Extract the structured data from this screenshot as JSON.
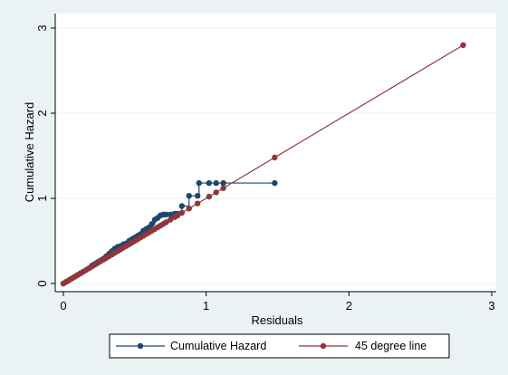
{
  "chart_data": {
    "type": "line",
    "title": "",
    "xlabel": "Residuals",
    "ylabel": "Cumulative Hazard",
    "xlim": [
      0,
      3
    ],
    "ylim": [
      0,
      3
    ],
    "x_ticks": [
      "0",
      "1",
      "2",
      "3"
    ],
    "y_ticks": [
      "0",
      "1",
      "2",
      "3"
    ],
    "grid": "horizontal",
    "legend_position": "bottom",
    "colors": {
      "background": "#eaf2f3",
      "plot_area": "#ffffff",
      "gridline": "#eaf2f3",
      "axis": "#000000"
    },
    "series": [
      {
        "name": "Cumulative Hazard",
        "color": "#1a476f",
        "marker": "circle",
        "step": true,
        "points": [
          [
            0.0,
            0.0
          ],
          [
            0.02,
            0.02
          ],
          [
            0.04,
            0.04
          ],
          [
            0.06,
            0.06
          ],
          [
            0.08,
            0.08
          ],
          [
            0.1,
            0.1
          ],
          [
            0.12,
            0.12
          ],
          [
            0.14,
            0.14
          ],
          [
            0.16,
            0.16
          ],
          [
            0.18,
            0.18
          ],
          [
            0.2,
            0.21
          ],
          [
            0.22,
            0.23
          ],
          [
            0.24,
            0.25
          ],
          [
            0.26,
            0.27
          ],
          [
            0.28,
            0.29
          ],
          [
            0.3,
            0.32
          ],
          [
            0.32,
            0.35
          ],
          [
            0.34,
            0.38
          ],
          [
            0.36,
            0.41
          ],
          [
            0.38,
            0.43
          ],
          [
            0.4,
            0.44
          ],
          [
            0.42,
            0.46
          ],
          [
            0.44,
            0.47
          ],
          [
            0.46,
            0.5
          ],
          [
            0.48,
            0.52
          ],
          [
            0.5,
            0.54
          ],
          [
            0.52,
            0.56
          ],
          [
            0.54,
            0.58
          ],
          [
            0.56,
            0.62
          ],
          [
            0.58,
            0.64
          ],
          [
            0.6,
            0.66
          ],
          [
            0.62,
            0.7
          ],
          [
            0.64,
            0.75
          ],
          [
            0.66,
            0.77
          ],
          [
            0.68,
            0.8
          ],
          [
            0.7,
            0.81
          ],
          [
            0.72,
            0.81
          ],
          [
            0.75,
            0.81
          ],
          [
            0.78,
            0.82
          ],
          [
            0.8,
            0.82
          ],
          [
            0.83,
            0.91
          ],
          [
            0.88,
            1.03
          ],
          [
            0.94,
            1.03
          ],
          [
            0.95,
            1.18
          ],
          [
            1.02,
            1.18
          ],
          [
            1.07,
            1.18
          ],
          [
            1.12,
            1.18
          ],
          [
            1.48,
            1.18
          ]
        ]
      },
      {
        "name": "45 degree line",
        "color": "#90353b",
        "marker": "circle",
        "step": false,
        "points": [
          [
            0.0,
            0.0
          ],
          [
            0.02,
            0.02
          ],
          [
            0.04,
            0.04
          ],
          [
            0.06,
            0.06
          ],
          [
            0.08,
            0.08
          ],
          [
            0.1,
            0.1
          ],
          [
            0.12,
            0.12
          ],
          [
            0.14,
            0.14
          ],
          [
            0.16,
            0.16
          ],
          [
            0.18,
            0.18
          ],
          [
            0.2,
            0.2
          ],
          [
            0.22,
            0.22
          ],
          [
            0.24,
            0.24
          ],
          [
            0.26,
            0.26
          ],
          [
            0.28,
            0.28
          ],
          [
            0.3,
            0.3
          ],
          [
            0.32,
            0.32
          ],
          [
            0.34,
            0.34
          ],
          [
            0.36,
            0.36
          ],
          [
            0.38,
            0.38
          ],
          [
            0.4,
            0.4
          ],
          [
            0.42,
            0.42
          ],
          [
            0.44,
            0.44
          ],
          [
            0.46,
            0.46
          ],
          [
            0.48,
            0.48
          ],
          [
            0.5,
            0.5
          ],
          [
            0.52,
            0.52
          ],
          [
            0.54,
            0.54
          ],
          [
            0.56,
            0.56
          ],
          [
            0.58,
            0.58
          ],
          [
            0.6,
            0.6
          ],
          [
            0.62,
            0.62
          ],
          [
            0.64,
            0.64
          ],
          [
            0.66,
            0.66
          ],
          [
            0.68,
            0.68
          ],
          [
            0.7,
            0.7
          ],
          [
            0.72,
            0.72
          ],
          [
            0.75,
            0.75
          ],
          [
            0.78,
            0.78
          ],
          [
            0.8,
            0.8
          ],
          [
            0.83,
            0.83
          ],
          [
            0.88,
            0.88
          ],
          [
            0.94,
            0.94
          ],
          [
            1.02,
            1.02
          ],
          [
            1.07,
            1.07
          ],
          [
            1.12,
            1.12
          ],
          [
            1.48,
            1.48
          ],
          [
            2.8,
            2.8
          ]
        ]
      }
    ]
  }
}
